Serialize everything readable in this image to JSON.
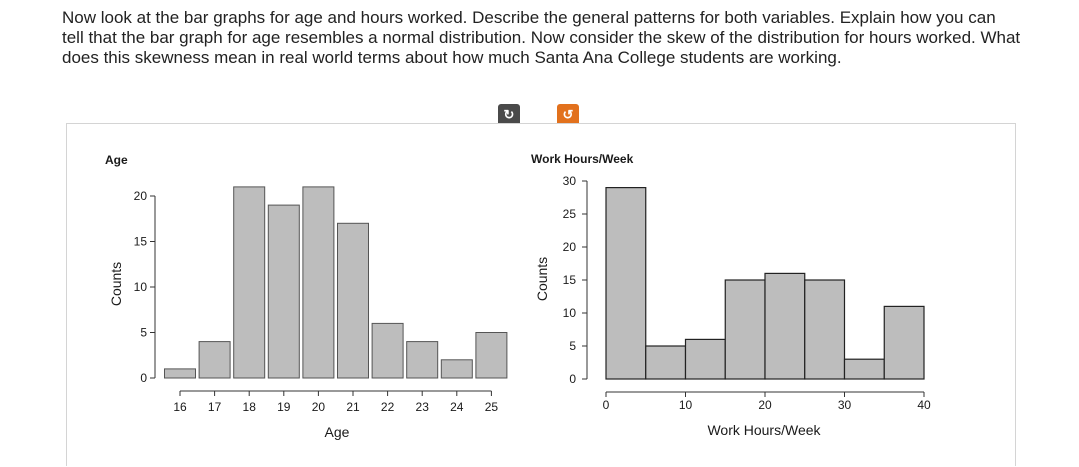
{
  "question": "Now look at the bar graphs for age and hours worked. Describe the general patterns for both variables. Explain how you can tell that the bar graph for age resembles a normal distribution. Now consider the skew of the distribution for hours worked. What does this skewness mean in real world terms about how much Santa Ana College students are working.",
  "controls": {
    "refresh_icon": "refresh-icon",
    "reset_icon": "reset-icon",
    "accent": "#e2711d"
  },
  "chart_data": [
    {
      "type": "bar",
      "title": "Age",
      "xlabel": "Age",
      "ylabel": "Counts",
      "categories": [
        "16",
        "17",
        "18",
        "19",
        "20",
        "21",
        "22",
        "23",
        "24",
        "25"
      ],
      "values": [
        1,
        4,
        21,
        19,
        21,
        17,
        6,
        4,
        2,
        5
      ],
      "ylim": [
        0,
        20
      ],
      "yticks": [
        "0",
        "5",
        "10",
        "15",
        "20"
      ],
      "bar_color": "#bdbdbd"
    },
    {
      "type": "bar",
      "title": "Work Hours/Week",
      "xlabel": "Work Hours/Week",
      "ylabel": "Counts",
      "bins": [
        [
          0,
          5
        ],
        [
          5,
          10
        ],
        [
          10,
          15
        ],
        [
          15,
          20
        ],
        [
          20,
          25
        ],
        [
          25,
          30
        ],
        [
          30,
          35
        ],
        [
          35,
          40
        ]
      ],
      "values": [
        29,
        5,
        6,
        15,
        16,
        15,
        3,
        11
      ],
      "ylim": [
        0,
        30
      ],
      "xticks": [
        "0",
        "10",
        "20",
        "30",
        "40"
      ],
      "yticks": [
        "0",
        "5",
        "10",
        "15",
        "20",
        "25",
        "30"
      ],
      "bar_color": "#bdbdbd"
    }
  ]
}
